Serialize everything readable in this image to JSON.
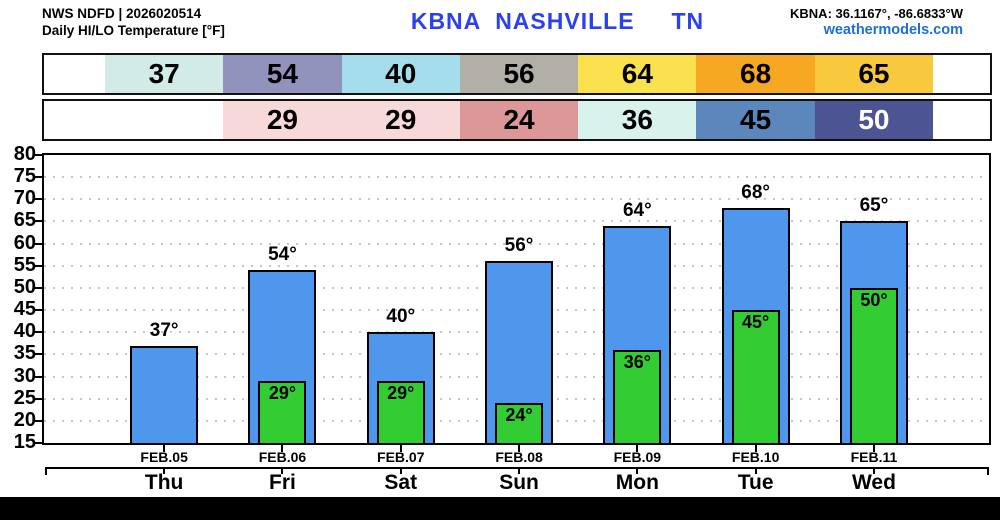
{
  "header": {
    "source": "NWS NDFD | 2026020514",
    "product": "Daily HI/LO Temperature [°F]",
    "station_title": "KBNA  NASHVILLE     TN",
    "station_coords": "KBNA: 36.1167°, -86.6833°W",
    "brand": "weathermodels.com"
  },
  "colors": {
    "title_blue": "#2b40f0",
    "brand_blue": "#1e6ed8",
    "hi_bar": "#4f97ec",
    "lo_bar": "#33cc33",
    "grid_dot": "#c6c6c6",
    "footer": "#000000"
  },
  "hi_strip": {
    "cells": [
      {
        "value": "37",
        "bg": "#d2ebe6",
        "fg": "#000000"
      },
      {
        "value": "54",
        "bg": "#9193bd",
        "fg": "#000000"
      },
      {
        "value": "40",
        "bg": "#a6dded",
        "fg": "#000000"
      },
      {
        "value": "56",
        "bg": "#b2afa6",
        "fg": "#000000"
      },
      {
        "value": "64",
        "bg": "#fbe14d",
        "fg": "#000000"
      },
      {
        "value": "68",
        "bg": "#f7a823",
        "fg": "#000000"
      },
      {
        "value": "65",
        "bg": "#f8c83d",
        "fg": "#000000"
      }
    ]
  },
  "lo_strip": {
    "lead_columns": 1,
    "cells": [
      {
        "value": "29",
        "bg": "#f7d9d9",
        "fg": "#000000"
      },
      {
        "value": "29",
        "bg": "#f7d9d9",
        "fg": "#000000"
      },
      {
        "value": "24",
        "bg": "#dd9798",
        "fg": "#000000"
      },
      {
        "value": "36",
        "bg": "#d8f2ec",
        "fg": "#000000"
      },
      {
        "value": "45",
        "bg": "#5b87bd",
        "fg": "#000000"
      },
      {
        "value": "50",
        "bg": "#4c5494",
        "fg": "#ffffff"
      }
    ]
  },
  "chart_data": {
    "type": "bar",
    "title": "Daily HI/LO Temperature [°F]",
    "station": "KBNA NASHVILLE TN",
    "categories": [
      "FEB.05",
      "FEB.06",
      "FEB.07",
      "FEB.08",
      "FEB.09",
      "FEB.10",
      "FEB.11"
    ],
    "day_labels": [
      "Thu",
      "Fri",
      "Sat",
      "Sun",
      "Mon",
      "Tue",
      "Wed"
    ],
    "series": [
      {
        "name": "High",
        "values": [
          37,
          54,
          40,
          56,
          64,
          68,
          65
        ],
        "unit": "°F"
      },
      {
        "name": "Low",
        "values": [
          null,
          29,
          29,
          24,
          36,
          45,
          50
        ],
        "unit": "°F"
      }
    ],
    "ylim": [
      15,
      80
    ],
    "ytick_step": 5,
    "grid": "horizontal-dotted",
    "legend": "none"
  }
}
